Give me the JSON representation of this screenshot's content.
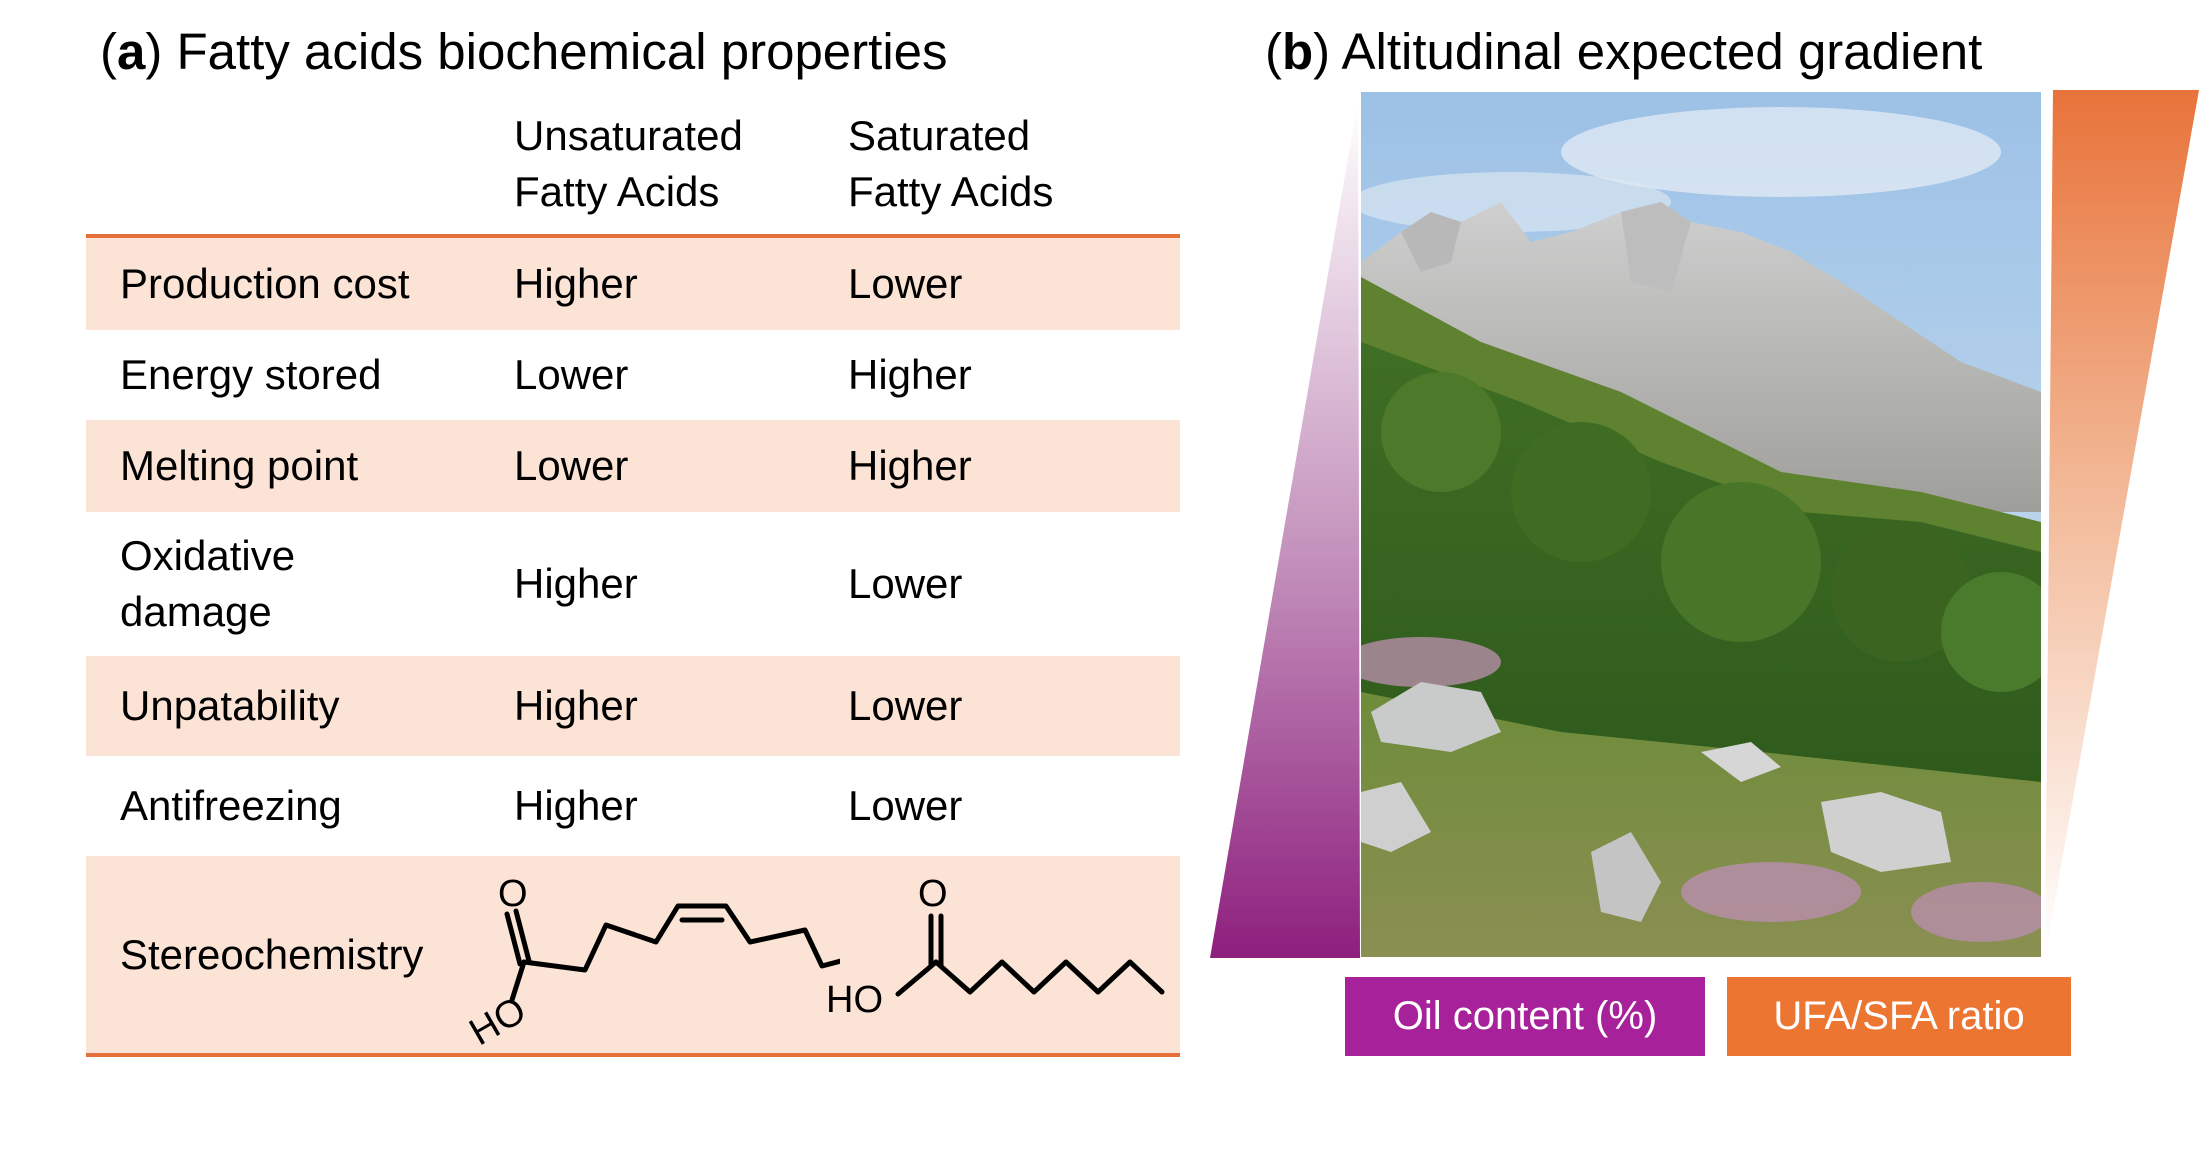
{
  "panel_a": {
    "label": "a",
    "title": "Fatty acids biochemical properties",
    "columns": {
      "unsaturated": [
        "Unsaturated",
        "Fatty Acids"
      ],
      "saturated": [
        "Saturated",
        "Fatty Acids"
      ]
    },
    "rows": [
      {
        "property": "Production cost",
        "unsaturated": "Higher",
        "saturated": "Lower"
      },
      {
        "property": "Energy stored",
        "unsaturated": "Lower",
        "saturated": "Higher"
      },
      {
        "property": "Melting point",
        "unsaturated": "Lower",
        "saturated": "Higher"
      },
      {
        "property_lines": [
          "Oxidative",
          "damage"
        ],
        "unsaturated": "Higher",
        "saturated": "Lower"
      },
      {
        "property": "Unpatability",
        "unsaturated": "Higher",
        "saturated": "Lower"
      },
      {
        "property": "Antifreezing",
        "unsaturated": "Higher",
        "saturated": "Lower"
      },
      {
        "property": "Stereochemistry"
      }
    ],
    "molecules": {
      "atom_o": "O",
      "atom_ho": "HO"
    }
  },
  "panel_b": {
    "label": "b",
    "title": "Altitudinal expected gradient",
    "legend": {
      "oil": "Oil content (%)",
      "ratio": "UFA/SFA ratio"
    }
  },
  "colors": {
    "accent_orange": "#E5703A",
    "row_shade": "#FBE3D6",
    "purple": "#A6219A",
    "orange_box": "#ED7532"
  }
}
